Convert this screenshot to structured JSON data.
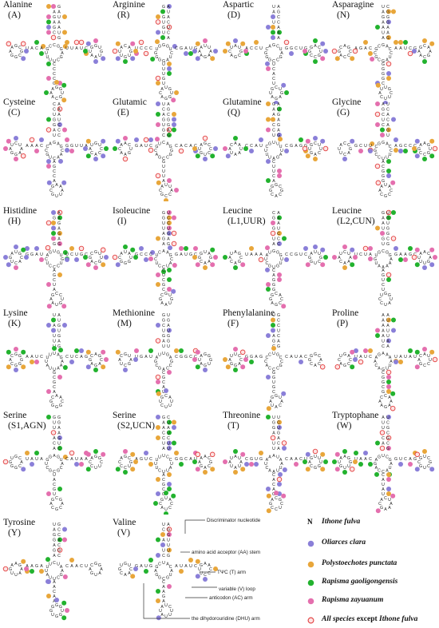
{
  "legend": {
    "marker": "N",
    "items": [
      {
        "label": "Ithone fulva",
        "color": "#000000",
        "kind": "letter"
      },
      {
        "label": "Oliarces clara",
        "color": "#8a7fd8",
        "kind": "dot"
      },
      {
        "label": "Polystoechotes punctata",
        "color": "#e8a63a",
        "kind": "dot"
      },
      {
        "label": "Rapisma gaoligongensis",
        "color": "#22b22e",
        "kind": "dot"
      },
      {
        "label": "Rapisma zayuanum",
        "color": "#e46fae",
        "kind": "dot"
      },
      {
        "label_bold": "All species",
        "label_rest": " except ",
        "label_italic": "Ithone fulva",
        "color": "#e23c3c",
        "kind": "ring"
      }
    ]
  },
  "structure_labels": {
    "discriminator": "Discriminator nucleotide",
    "aa_stem": "amino acid acceptor (AA) stem",
    "t_arm": "TΨC (T) arm",
    "v_loop": "variable (V) loop",
    "ac_arm": "anticodon (AC) arm",
    "dhu_arm": "the dihydorouridine (DHU) arm"
  },
  "trnas": [
    {
      "name": "Alanine",
      "abbr": "(A)"
    },
    {
      "name": "Arginine",
      "abbr": "(R)"
    },
    {
      "name": "Aspartic",
      "abbr": "(D)"
    },
    {
      "name": "Asparagine",
      "abbr": "(N)"
    },
    {
      "name": "Cysteine",
      "abbr": "(C)"
    },
    {
      "name": "Glutamic",
      "abbr": "(E)"
    },
    {
      "name": "Glutamine",
      "abbr": "(Q)"
    },
    {
      "name": "Glycine",
      "abbr": "(G)"
    },
    {
      "name": "Histidine",
      "abbr": "(H)"
    },
    {
      "name": "Isoleucine",
      "abbr": "(I)"
    },
    {
      "name": "Leucine",
      "abbr": "(L1,UUR)"
    },
    {
      "name": "Leucine",
      "abbr": "(L2,CUN)"
    },
    {
      "name": "Lysine",
      "abbr": "(K)"
    },
    {
      "name": "Methionine",
      "abbr": "(M)"
    },
    {
      "name": "Phenylalanine",
      "abbr": "(F)"
    },
    {
      "name": "Proline",
      "abbr": "(P)"
    },
    {
      "name": "Serine",
      "abbr": "(S1,AGN)"
    },
    {
      "name": "Serine",
      "abbr": "(S2,UCN)"
    },
    {
      "name": "Threonine",
      "abbr": "(T)"
    },
    {
      "name": "Tryptophane",
      "abbr": "(W)"
    },
    {
      "name": "Tyrosine",
      "abbr": "(Y)"
    },
    {
      "name": "Valine",
      "abbr": "(V)"
    }
  ]
}
